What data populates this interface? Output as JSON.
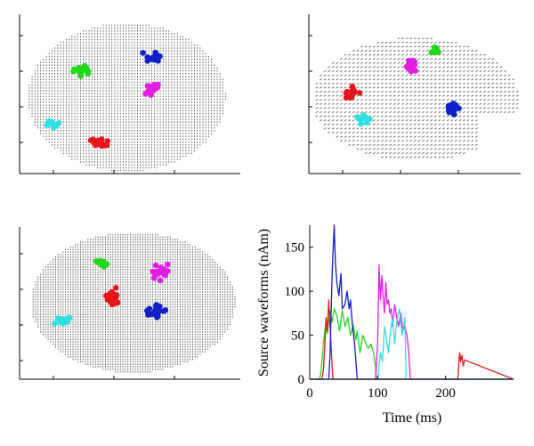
{
  "colors": {
    "red": "#e3161b",
    "green": "#20d81a",
    "blue": "#1020c8",
    "magenta": "#e21ee0",
    "cyan": "#2fe0e4",
    "grid": "#555555"
  },
  "chart_data": [
    {
      "type": "scatter",
      "panel": "top-left",
      "view": "axial brain source grid",
      "clusters": [
        {
          "color": "green",
          "center": [
            0.28,
            0.36
          ],
          "spread": [
            0.07,
            0.04
          ],
          "count": 18
        },
        {
          "color": "blue",
          "center": [
            0.62,
            0.27
          ],
          "spread": [
            0.06,
            0.05
          ],
          "count": 18
        },
        {
          "color": "magenta",
          "center": [
            0.63,
            0.47
          ],
          "spread": [
            0.05,
            0.05
          ],
          "count": 16
        },
        {
          "color": "cyan",
          "center": [
            0.14,
            0.7
          ],
          "spread": [
            0.06,
            0.04
          ],
          "count": 16
        },
        {
          "color": "red",
          "center": [
            0.37,
            0.82
          ],
          "spread": [
            0.06,
            0.04
          ],
          "count": 18
        }
      ]
    },
    {
      "type": "scatter",
      "panel": "top-right",
      "view": "sagittal brain source grid",
      "clusters": [
        {
          "color": "red",
          "center": [
            0.19,
            0.46
          ],
          "spread": [
            0.05,
            0.07
          ],
          "count": 16
        },
        {
          "color": "cyan",
          "center": [
            0.25,
            0.66
          ],
          "spread": [
            0.05,
            0.05
          ],
          "count": 14
        },
        {
          "color": "magenta",
          "center": [
            0.48,
            0.28
          ],
          "spread": [
            0.04,
            0.06
          ],
          "count": 16
        },
        {
          "color": "green",
          "center": [
            0.6,
            0.17
          ],
          "spread": [
            0.04,
            0.04
          ],
          "count": 12
        },
        {
          "color": "blue",
          "center": [
            0.69,
            0.57
          ],
          "spread": [
            0.05,
            0.09
          ],
          "count": 18
        }
      ]
    },
    {
      "type": "scatter",
      "panel": "bottom-left",
      "view": "coronal brain source grid",
      "clusters": [
        {
          "color": "green",
          "center": [
            0.35,
            0.22
          ],
          "spread": [
            0.04,
            0.04
          ],
          "count": 12
        },
        {
          "color": "magenta",
          "center": [
            0.63,
            0.28
          ],
          "spread": [
            0.05,
            0.08
          ],
          "count": 18
        },
        {
          "color": "red",
          "center": [
            0.4,
            0.46
          ],
          "spread": [
            0.04,
            0.11
          ],
          "count": 22
        },
        {
          "color": "blue",
          "center": [
            0.61,
            0.58
          ],
          "spread": [
            0.06,
            0.08
          ],
          "count": 22
        },
        {
          "color": "cyan",
          "center": [
            0.15,
            0.64
          ],
          "spread": [
            0.06,
            0.05
          ],
          "count": 16
        }
      ]
    },
    {
      "type": "line",
      "panel": "bottom-right",
      "xlabel": "Time (ms)",
      "ylabel": "Source waveforms (nAm)",
      "xlim": [
        0,
        300
      ],
      "ylim": [
        0,
        175
      ],
      "xticks": [
        0,
        100,
        200
      ],
      "yticks": [
        0,
        50,
        100,
        150
      ],
      "series": [
        {
          "color": "green",
          "x": [
            0,
            5,
            10,
            14,
            16,
            18,
            20,
            23,
            26,
            30,
            33,
            36,
            40,
            44,
            48,
            52,
            56,
            60,
            64,
            68,
            70,
            71,
            74,
            78,
            82,
            86,
            90,
            94,
            97,
            98,
            300
          ],
          "y": [
            0,
            0,
            0,
            0,
            5,
            20,
            40,
            60,
            52,
            78,
            65,
            80,
            72,
            55,
            78,
            60,
            70,
            50,
            62,
            45,
            55,
            48,
            30,
            50,
            42,
            35,
            40,
            30,
            15,
            0,
            0
          ]
        },
        {
          "color": "red",
          "x": [
            0,
            18,
            20,
            22,
            24,
            26,
            28,
            30,
            32,
            34,
            218,
            219,
            220,
            221,
            222,
            224,
            226,
            228,
            300
          ],
          "y": [
            0,
            0,
            10,
            35,
            70,
            55,
            90,
            60,
            30,
            0,
            0,
            12,
            25,
            30,
            20,
            27,
            15,
            22,
            0
          ]
        },
        {
          "color": "blue",
          "x": [
            0,
            28,
            30,
            33,
            36,
            38,
            40,
            43,
            46,
            48,
            52,
            55,
            58,
            60,
            63,
            66,
            70,
            300
          ],
          "y": [
            0,
            0,
            30,
            120,
            178,
            130,
            110,
            95,
            120,
            80,
            85,
            100,
            80,
            90,
            60,
            40,
            0,
            0
          ]
        },
        {
          "color": "magenta",
          "x": [
            0,
            97,
            100,
            102,
            104,
            106,
            108,
            110,
            112,
            114,
            116,
            118,
            120,
            122,
            125,
            128,
            131,
            134,
            137,
            140,
            143,
            146,
            148,
            300
          ],
          "y": [
            0,
            0,
            40,
            130,
            90,
            118,
            95,
            75,
            110,
            85,
            90,
            75,
            80,
            60,
            85,
            70,
            60,
            75,
            55,
            60,
            50,
            30,
            0,
            0
          ]
        },
        {
          "color": "cyan",
          "x": [
            0,
            100,
            102,
            104,
            107,
            110,
            113,
            116,
            119,
            122,
            125,
            128,
            132,
            136,
            140,
            142,
            300
          ],
          "y": [
            0,
            0,
            15,
            30,
            20,
            60,
            45,
            30,
            55,
            70,
            40,
            65,
            80,
            50,
            70,
            0,
            0
          ]
        }
      ]
    }
  ]
}
